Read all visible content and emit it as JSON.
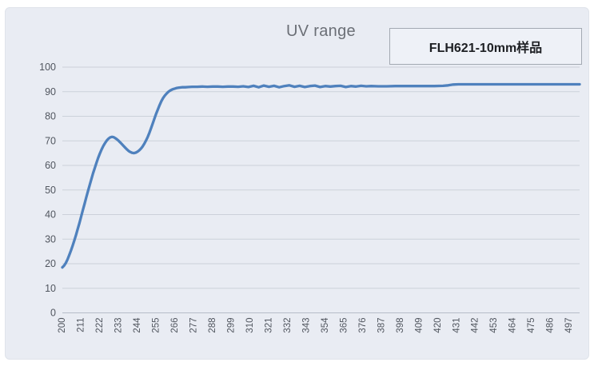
{
  "chart_data": {
    "type": "line",
    "title": "UV range",
    "xlabel": "",
    "ylabel": "",
    "xlim": [
      200,
      503
    ],
    "ylim": [
      0,
      100
    ],
    "grid": "horizontal-only",
    "legend_position": "top-right",
    "x_tick_step": 11,
    "x_tick_labels": [
      "200",
      "211",
      "222",
      "233",
      "244",
      "255",
      "266",
      "277",
      "288",
      "299",
      "310",
      "321",
      "332",
      "343",
      "354",
      "365",
      "376",
      "387",
      "398",
      "409",
      "420",
      "431",
      "442",
      "453",
      "464",
      "475",
      "486",
      "497"
    ],
    "y_ticks": [
      0,
      10,
      20,
      30,
      40,
      50,
      60,
      70,
      80,
      90,
      100
    ],
    "series": [
      {
        "name": "FLH621-10mm样品",
        "points": [
          [
            200,
            18.5
          ],
          [
            201,
            19.2
          ],
          [
            202,
            20.3
          ],
          [
            203,
            21.7
          ],
          [
            204,
            23.4
          ],
          [
            205,
            25.3
          ],
          [
            206,
            27.3
          ],
          [
            207,
            29.4
          ],
          [
            208,
            31.7
          ],
          [
            209,
            34.1
          ],
          [
            210,
            36.6
          ],
          [
            211,
            39.2
          ],
          [
            212,
            41.8
          ],
          [
            213,
            44.4
          ],
          [
            214,
            47.0
          ],
          [
            215,
            49.5
          ],
          [
            216,
            52.0
          ],
          [
            217,
            54.4
          ],
          [
            218,
            56.8
          ],
          [
            219,
            59.0
          ],
          [
            220,
            61.1
          ],
          [
            221,
            63.1
          ],
          [
            222,
            64.9
          ],
          [
            223,
            66.5
          ],
          [
            224,
            67.9
          ],
          [
            225,
            69.1
          ],
          [
            226,
            70.1
          ],
          [
            227,
            70.9
          ],
          [
            228,
            71.4
          ],
          [
            229,
            71.6
          ],
          [
            230,
            71.5
          ],
          [
            231,
            71.1
          ],
          [
            232,
            70.6
          ],
          [
            233,
            70.0
          ],
          [
            234,
            69.3
          ],
          [
            235,
            68.6
          ],
          [
            236,
            67.8
          ],
          [
            237,
            67.1
          ],
          [
            238,
            66.4
          ],
          [
            239,
            65.8
          ],
          [
            240,
            65.4
          ],
          [
            241,
            65.1
          ],
          [
            242,
            65.0
          ],
          [
            243,
            65.2
          ],
          [
            244,
            65.6
          ],
          [
            245,
            66.1
          ],
          [
            246,
            66.8
          ],
          [
            247,
            67.7
          ],
          [
            248,
            68.8
          ],
          [
            249,
            70.1
          ],
          [
            250,
            71.6
          ],
          [
            251,
            73.3
          ],
          [
            252,
            75.2
          ],
          [
            253,
            77.2
          ],
          [
            254,
            79.2
          ],
          [
            255,
            81.1
          ],
          [
            256,
            82.9
          ],
          [
            257,
            84.6
          ],
          [
            258,
            86.1
          ],
          [
            259,
            87.4
          ],
          [
            260,
            88.4
          ],
          [
            261,
            89.2
          ],
          [
            262,
            89.9
          ],
          [
            263,
            90.4
          ],
          [
            264,
            90.8
          ],
          [
            265,
            91.1
          ],
          [
            266,
            91.3
          ],
          [
            267,
            91.5
          ],
          [
            268,
            91.6
          ],
          [
            269,
            91.7
          ],
          [
            270,
            91.8
          ],
          [
            272,
            91.8
          ],
          [
            274,
            91.9
          ],
          [
            276,
            92.0
          ],
          [
            279,
            92.0
          ],
          [
            282,
            92.1
          ],
          [
            285,
            92.0
          ],
          [
            288,
            92.1
          ],
          [
            291,
            92.1
          ],
          [
            294,
            92.0
          ],
          [
            297,
            92.1
          ],
          [
            300,
            92.1
          ],
          [
            303,
            92.0
          ],
          [
            306,
            92.2
          ],
          [
            309,
            91.9
          ],
          [
            312,
            92.4
          ],
          [
            315,
            91.8
          ],
          [
            318,
            92.5
          ],
          [
            321,
            92.0
          ],
          [
            324,
            92.4
          ],
          [
            327,
            91.8
          ],
          [
            330,
            92.3
          ],
          [
            333,
            92.6
          ],
          [
            336,
            92.0
          ],
          [
            339,
            92.4
          ],
          [
            342,
            91.9
          ],
          [
            345,
            92.3
          ],
          [
            348,
            92.5
          ],
          [
            351,
            91.9
          ],
          [
            354,
            92.3
          ],
          [
            357,
            92.1
          ],
          [
            360,
            92.3
          ],
          [
            363,
            92.4
          ],
          [
            366,
            91.9
          ],
          [
            369,
            92.3
          ],
          [
            372,
            92.1
          ],
          [
            375,
            92.4
          ],
          [
            378,
            92.2
          ],
          [
            381,
            92.3
          ],
          [
            385,
            92.2
          ],
          [
            390,
            92.2
          ],
          [
            395,
            92.3
          ],
          [
            400,
            92.3
          ],
          [
            406,
            92.3
          ],
          [
            412,
            92.3
          ],
          [
            418,
            92.3
          ],
          [
            423,
            92.4
          ],
          [
            426,
            92.6
          ],
          [
            429,
            92.9
          ],
          [
            432,
            93.0
          ],
          [
            438,
            93.0
          ],
          [
            445,
            93.0
          ],
          [
            455,
            93.0
          ],
          [
            465,
            93.0
          ],
          [
            475,
            93.0
          ],
          [
            485,
            93.0
          ],
          [
            495,
            93.0
          ],
          [
            503,
            93.0
          ]
        ]
      }
    ],
    "colors": {
      "line": "#4f81bd",
      "plot_bg": "#e9ecf3",
      "gridline": "#ccd1da",
      "axis_line": "#b7bdc8",
      "title_text": "#6b6f76",
      "tick_text": "#51565f",
      "legend_text": "#1d1f23",
      "legend_border": "#a3a9b2",
      "legend_bg": "#eef1f7"
    }
  }
}
